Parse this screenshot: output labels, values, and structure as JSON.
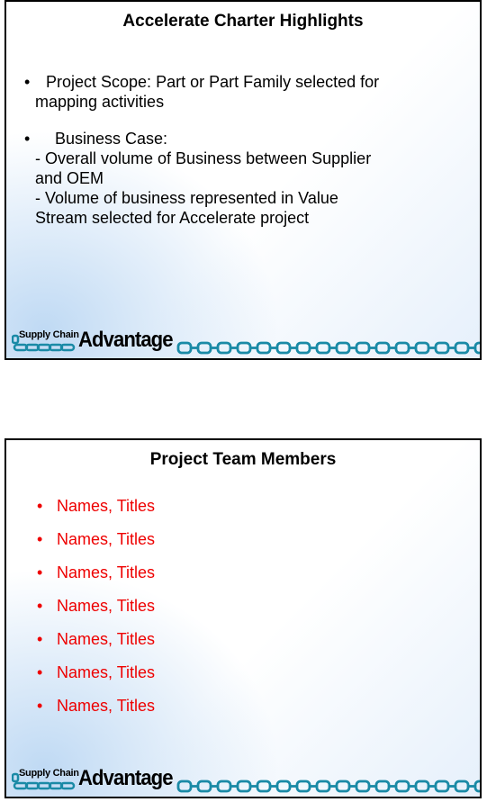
{
  "slide1": {
    "title": "Accelerate Charter Highlights",
    "bullet_symbol": "•",
    "bullets": [
      {
        "lines": [
          "Project Scope:  Part or Part Family selected for",
          "mapping activities"
        ]
      },
      {
        "lines": [
          "  Business Case:",
          "- Overall volume of Business between Supplier",
          "and OEM",
          "- Volume of business represented in Value",
          "Stream selected for Accelerate project"
        ]
      }
    ]
  },
  "slide2": {
    "title": "Project Team Members",
    "bullet_symbol": "•",
    "items": [
      "Names, Titles",
      "Names, Titles",
      "Names, Titles",
      "Names, Titles",
      "Names, Titles",
      "Names, Titles",
      "Names, Titles"
    ]
  },
  "logo": {
    "small_text": "Supply Chain",
    "big_text": "Advantage"
  },
  "colors": {
    "chain": "#1a8aa6",
    "bullet_red": "#ee0000"
  }
}
